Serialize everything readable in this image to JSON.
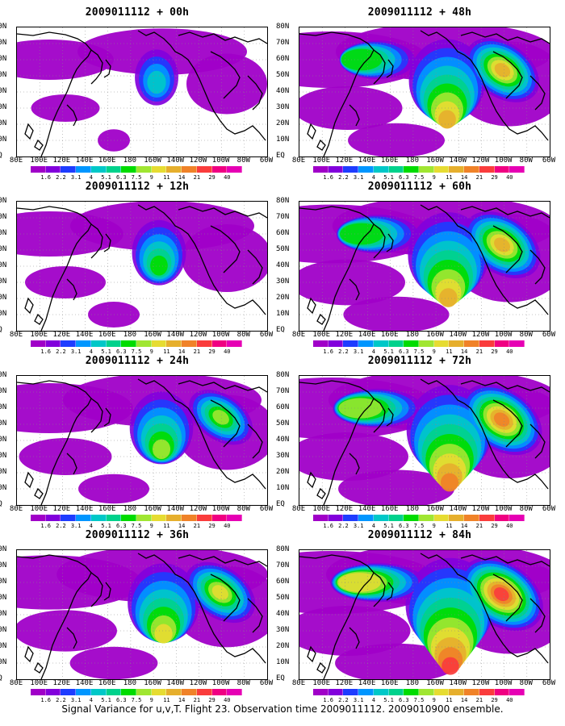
{
  "panels": [
    {
      "title": "2009011112 + 00h",
      "lead_hours": 0,
      "intensity": 0.25
    },
    {
      "title": "2009011112 + 48h",
      "lead_hours": 48,
      "intensity": 0.75
    },
    {
      "title": "2009011112 + 12h",
      "lead_hours": 12,
      "intensity": 0.4
    },
    {
      "title": "2009011112 + 60h",
      "lead_hours": 60,
      "intensity": 0.82
    },
    {
      "title": "2009011112 + 24h",
      "lead_hours": 24,
      "intensity": 0.55
    },
    {
      "title": "2009011112 + 72h",
      "lead_hours": 72,
      "intensity": 0.9
    },
    {
      "title": "2009011112 + 36h",
      "lead_hours": 36,
      "intensity": 0.68
    },
    {
      "title": "2009011112 + 84h",
      "lead_hours": 84,
      "intensity": 0.95
    }
  ],
  "longitude_labels": [
    "80E",
    "100E",
    "120E",
    "140E",
    "160E",
    "180",
    "160W",
    "140W",
    "120W",
    "100W",
    "80W",
    "60W"
  ],
  "latitude_labels": [
    "80N",
    "70N",
    "60N",
    "50N",
    "40N",
    "30N",
    "20N",
    "10N",
    "EQ"
  ],
  "colorbar": {
    "labels": [
      "1.6",
      "2.2",
      "3.1",
      "4",
      "5.1",
      "6.3",
      "7.5",
      "9",
      "11",
      "14",
      "21",
      "29",
      "40"
    ],
    "colors": [
      "#a000c8",
      "#8200dc",
      "#1e3cff",
      "#0096ff",
      "#00c8c8",
      "#00d28c",
      "#00dc00",
      "#a0e632",
      "#e6dc32",
      "#e6af2d",
      "#f08228",
      "#fa3c3c",
      "#f00082"
    ]
  },
  "caption": "Signal Variance for u,v,T. Flight 23. Observation time 2009011112. 2009010900 ensemble."
}
